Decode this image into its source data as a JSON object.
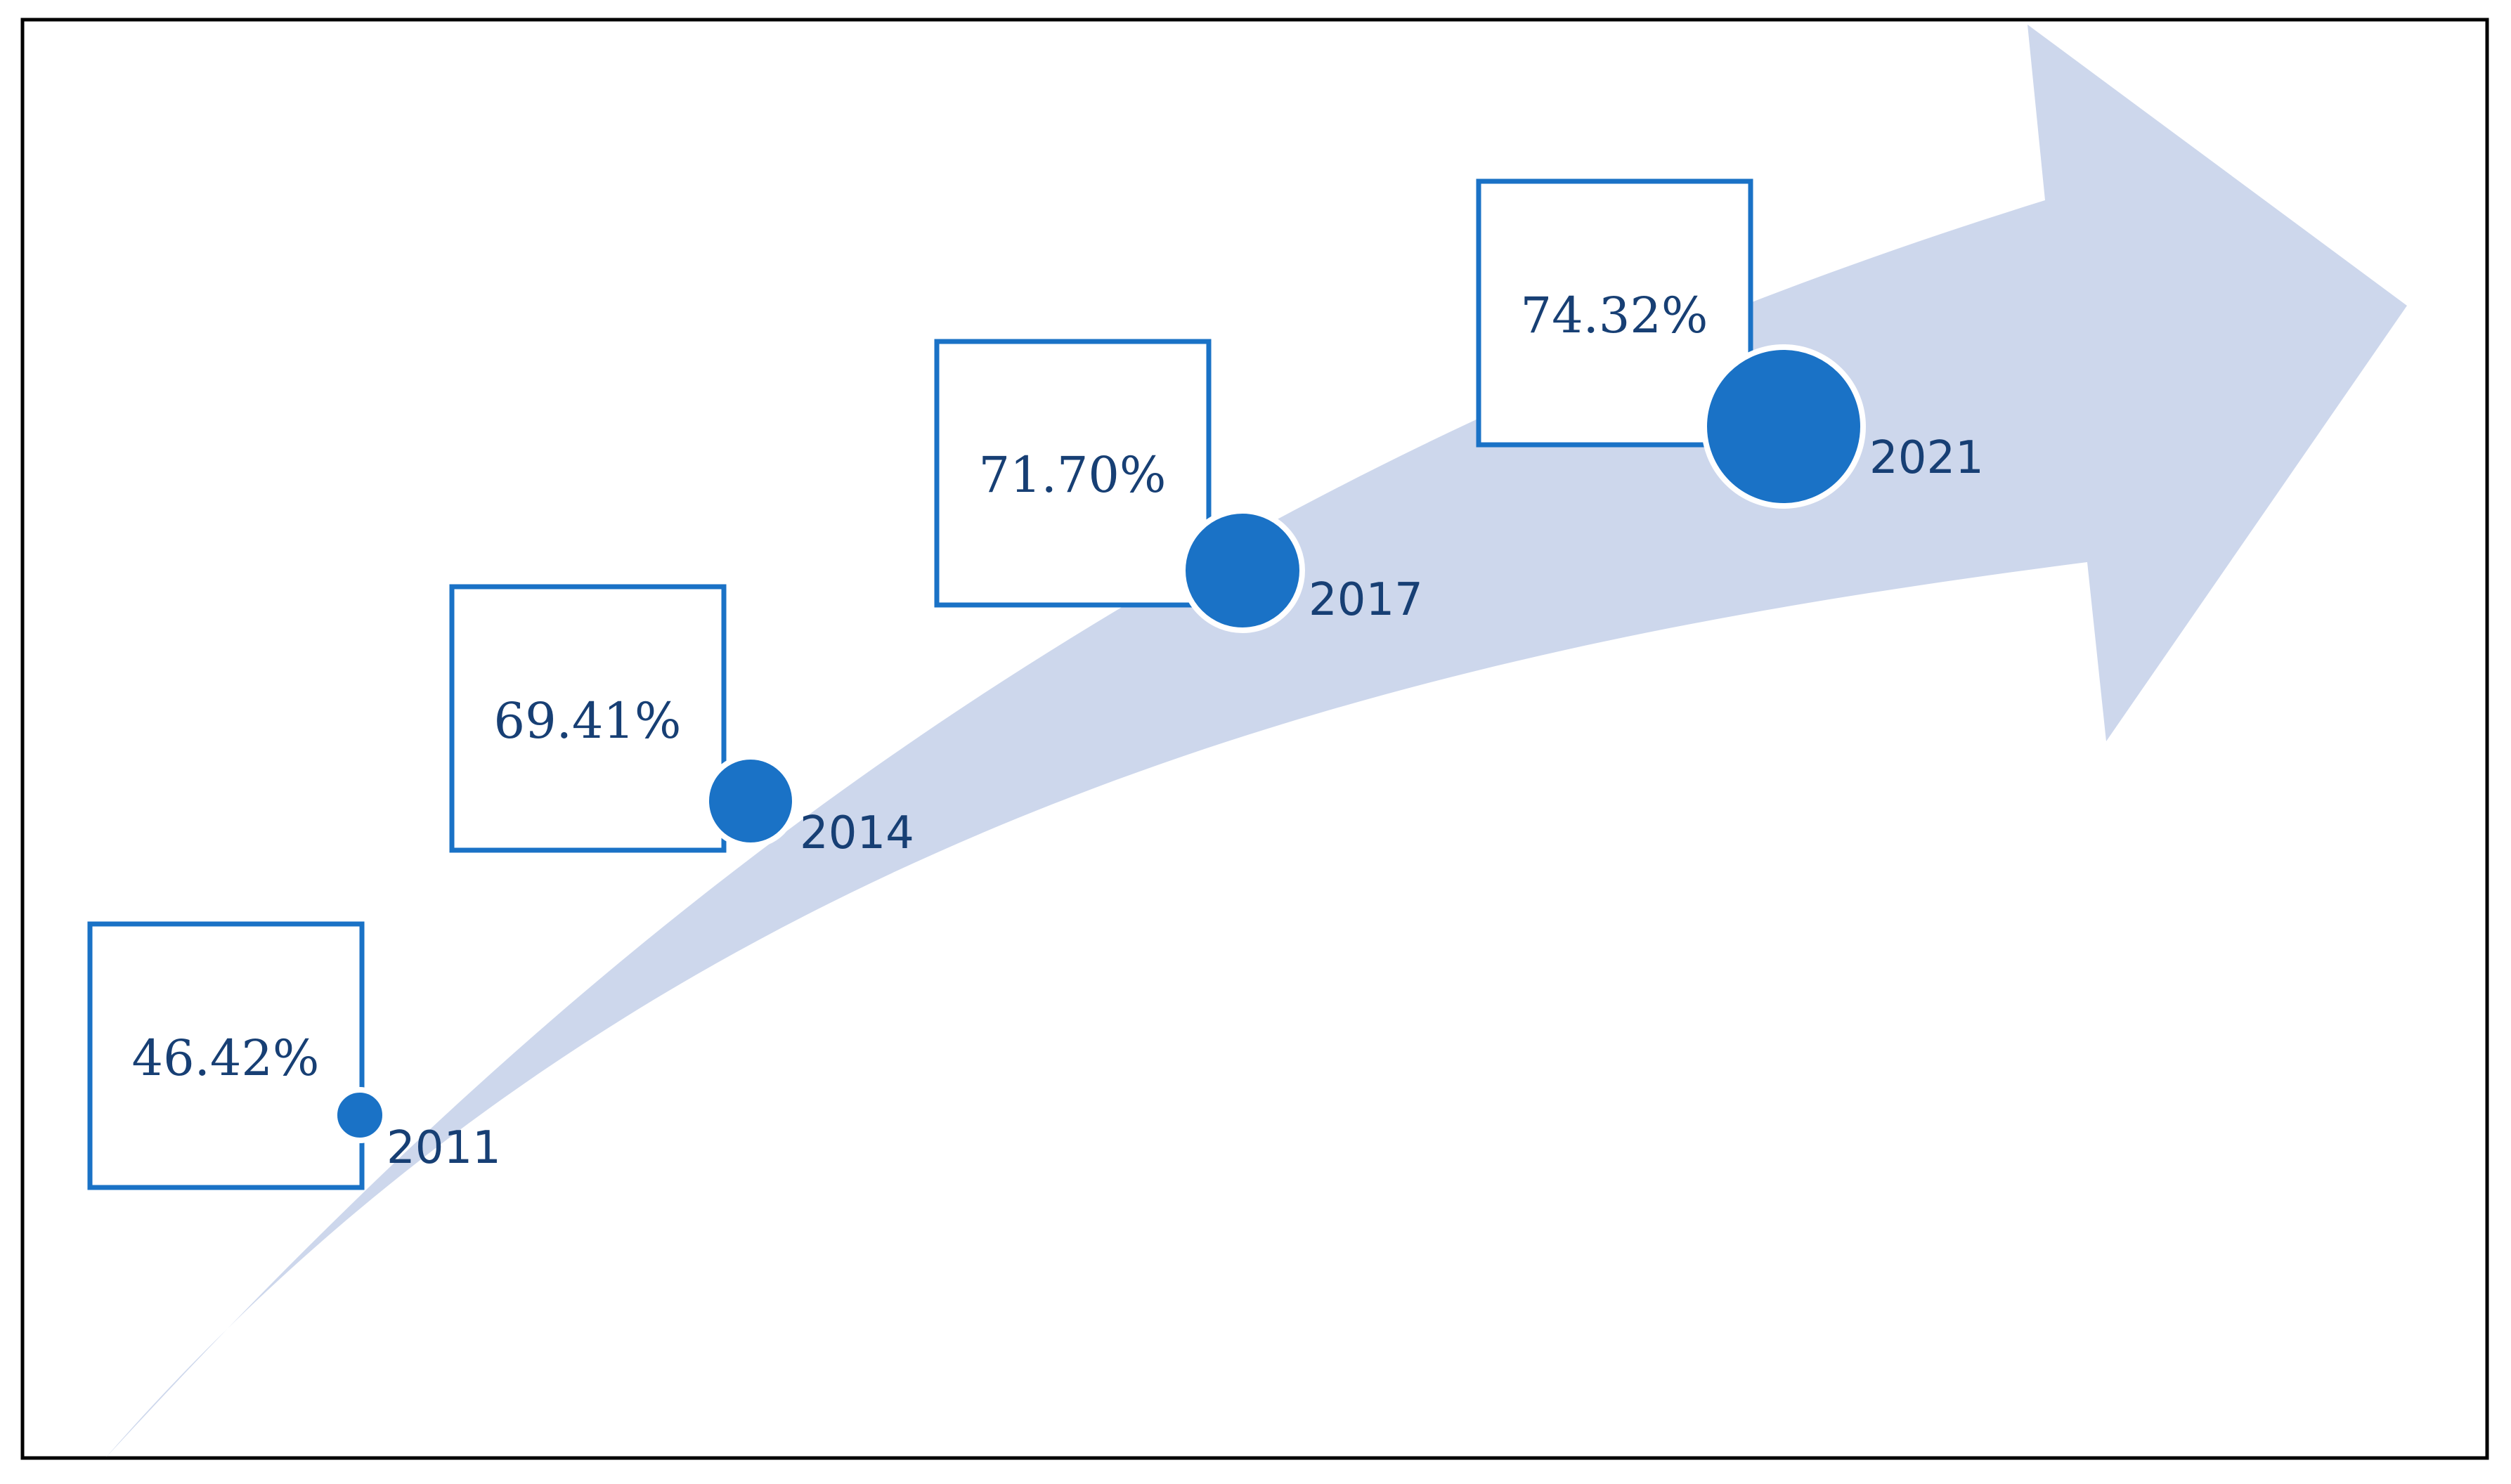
{
  "colors": {
    "arrow": "#cdd7ec",
    "box_stroke": "#1a72c6",
    "dot_fill": "#1a72c6",
    "text": "#173f74",
    "frame": "#000000"
  },
  "milestones": [
    {
      "year": "2011",
      "value_label": "46.42%",
      "value": 46.42
    },
    {
      "year": "2014",
      "value_label": "69.41%",
      "value": 69.41
    },
    {
      "year": "2017",
      "value_label": "71.70%",
      "value": 71.7
    },
    {
      "year": "2021",
      "value_label": "74.32%",
      "value": 74.32
    }
  ]
}
